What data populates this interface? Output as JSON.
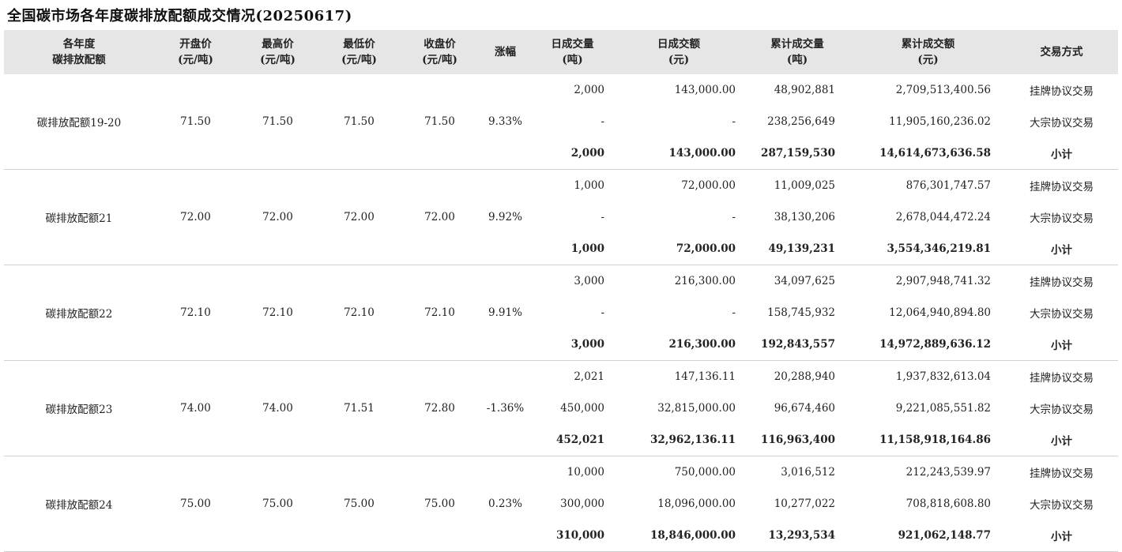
{
  "title": "全国碳市场各年度碳排放配额成交情况(20250617)",
  "headers": {
    "year": [
      "各年度",
      "碳排放配额"
    ],
    "open": [
      "开盘价",
      "(元/吨)"
    ],
    "high": [
      "最高价",
      "(元/吨)"
    ],
    "low": [
      "最低价",
      "(元/吨)"
    ],
    "close": [
      "收盘价",
      "(元/吨)"
    ],
    "change": [
      "涨幅"
    ],
    "daily_vol": [
      "日成交量",
      "(吨)"
    ],
    "daily_amt": [
      "日成交额",
      "(元)"
    ],
    "cum_vol": [
      "累计成交量",
      "(吨)"
    ],
    "cum_amt": [
      "累计成交额",
      "(元)"
    ],
    "method": [
      "交易方式"
    ]
  },
  "groups": [
    {
      "name": "碳排放配额19-20",
      "open": "71.50",
      "high": "71.50",
      "low": "71.50",
      "close": "71.50",
      "change": "9.33%",
      "rows": [
        {
          "daily_vol": "2,000",
          "daily_amt": "143,000.00",
          "cum_vol": "48,902,881",
          "cum_amt": "2,709,513,400.56",
          "method": "挂牌协议交易"
        },
        {
          "daily_vol": "-",
          "daily_amt": "-",
          "cum_vol": "238,256,649",
          "cum_amt": "11,905,160,236.02",
          "method": "大宗协议交易"
        },
        {
          "daily_vol": "2,000",
          "daily_amt": "143,000.00",
          "cum_vol": "287,159,530",
          "cum_amt": "14,614,673,636.58",
          "method": "小计"
        }
      ]
    },
    {
      "name": "碳排放配额21",
      "open": "72.00",
      "high": "72.00",
      "low": "72.00",
      "close": "72.00",
      "change": "9.92%",
      "rows": [
        {
          "daily_vol": "1,000",
          "daily_amt": "72,000.00",
          "cum_vol": "11,009,025",
          "cum_amt": "876,301,747.57",
          "method": "挂牌协议交易"
        },
        {
          "daily_vol": "-",
          "daily_amt": "-",
          "cum_vol": "38,130,206",
          "cum_amt": "2,678,044,472.24",
          "method": "大宗协议交易"
        },
        {
          "daily_vol": "1,000",
          "daily_amt": "72,000.00",
          "cum_vol": "49,139,231",
          "cum_amt": "3,554,346,219.81",
          "method": "小计"
        }
      ]
    },
    {
      "name": "碳排放配额22",
      "open": "72.10",
      "high": "72.10",
      "low": "72.10",
      "close": "72.10",
      "change": "9.91%",
      "rows": [
        {
          "daily_vol": "3,000",
          "daily_amt": "216,300.00",
          "cum_vol": "34,097,625",
          "cum_amt": "2,907,948,741.32",
          "method": "挂牌协议交易"
        },
        {
          "daily_vol": "-",
          "daily_amt": "-",
          "cum_vol": "158,745,932",
          "cum_amt": "12,064,940,894.80",
          "method": "大宗协议交易"
        },
        {
          "daily_vol": "3,000",
          "daily_amt": "216,300.00",
          "cum_vol": "192,843,557",
          "cum_amt": "14,972,889,636.12",
          "method": "小计"
        }
      ]
    },
    {
      "name": "碳排放配额23",
      "open": "74.00",
      "high": "74.00",
      "low": "71.51",
      "close": "72.80",
      "change": "-1.36%",
      "rows": [
        {
          "daily_vol": "2,021",
          "daily_amt": "147,136.11",
          "cum_vol": "20,288,940",
          "cum_amt": "1,937,832,613.04",
          "method": "挂牌协议交易"
        },
        {
          "daily_vol": "450,000",
          "daily_amt": "32,815,000.00",
          "cum_vol": "96,674,460",
          "cum_amt": "9,221,085,551.82",
          "method": "大宗协议交易"
        },
        {
          "daily_vol": "452,021",
          "daily_amt": "32,962,136.11",
          "cum_vol": "116,963,400",
          "cum_amt": "11,158,918,164.86",
          "method": "小计"
        }
      ]
    },
    {
      "name": "碳排放配额24",
      "open": "75.00",
      "high": "75.00",
      "low": "75.00",
      "close": "75.00",
      "change": "0.23%",
      "rows": [
        {
          "daily_vol": "10,000",
          "daily_amt": "750,000.00",
          "cum_vol": "3,016,512",
          "cum_amt": "212,243,539.97",
          "method": "挂牌协议交易"
        },
        {
          "daily_vol": "300,000",
          "daily_amt": "18,096,000.00",
          "cum_vol": "10,277,022",
          "cum_amt": "708,818,608.80",
          "method": "大宗协议交易"
        },
        {
          "daily_vol": "310,000",
          "daily_amt": "18,846,000.00",
          "cum_vol": "13,293,534",
          "cum_amt": "921,062,148.77",
          "method": "小计"
        }
      ]
    }
  ]
}
